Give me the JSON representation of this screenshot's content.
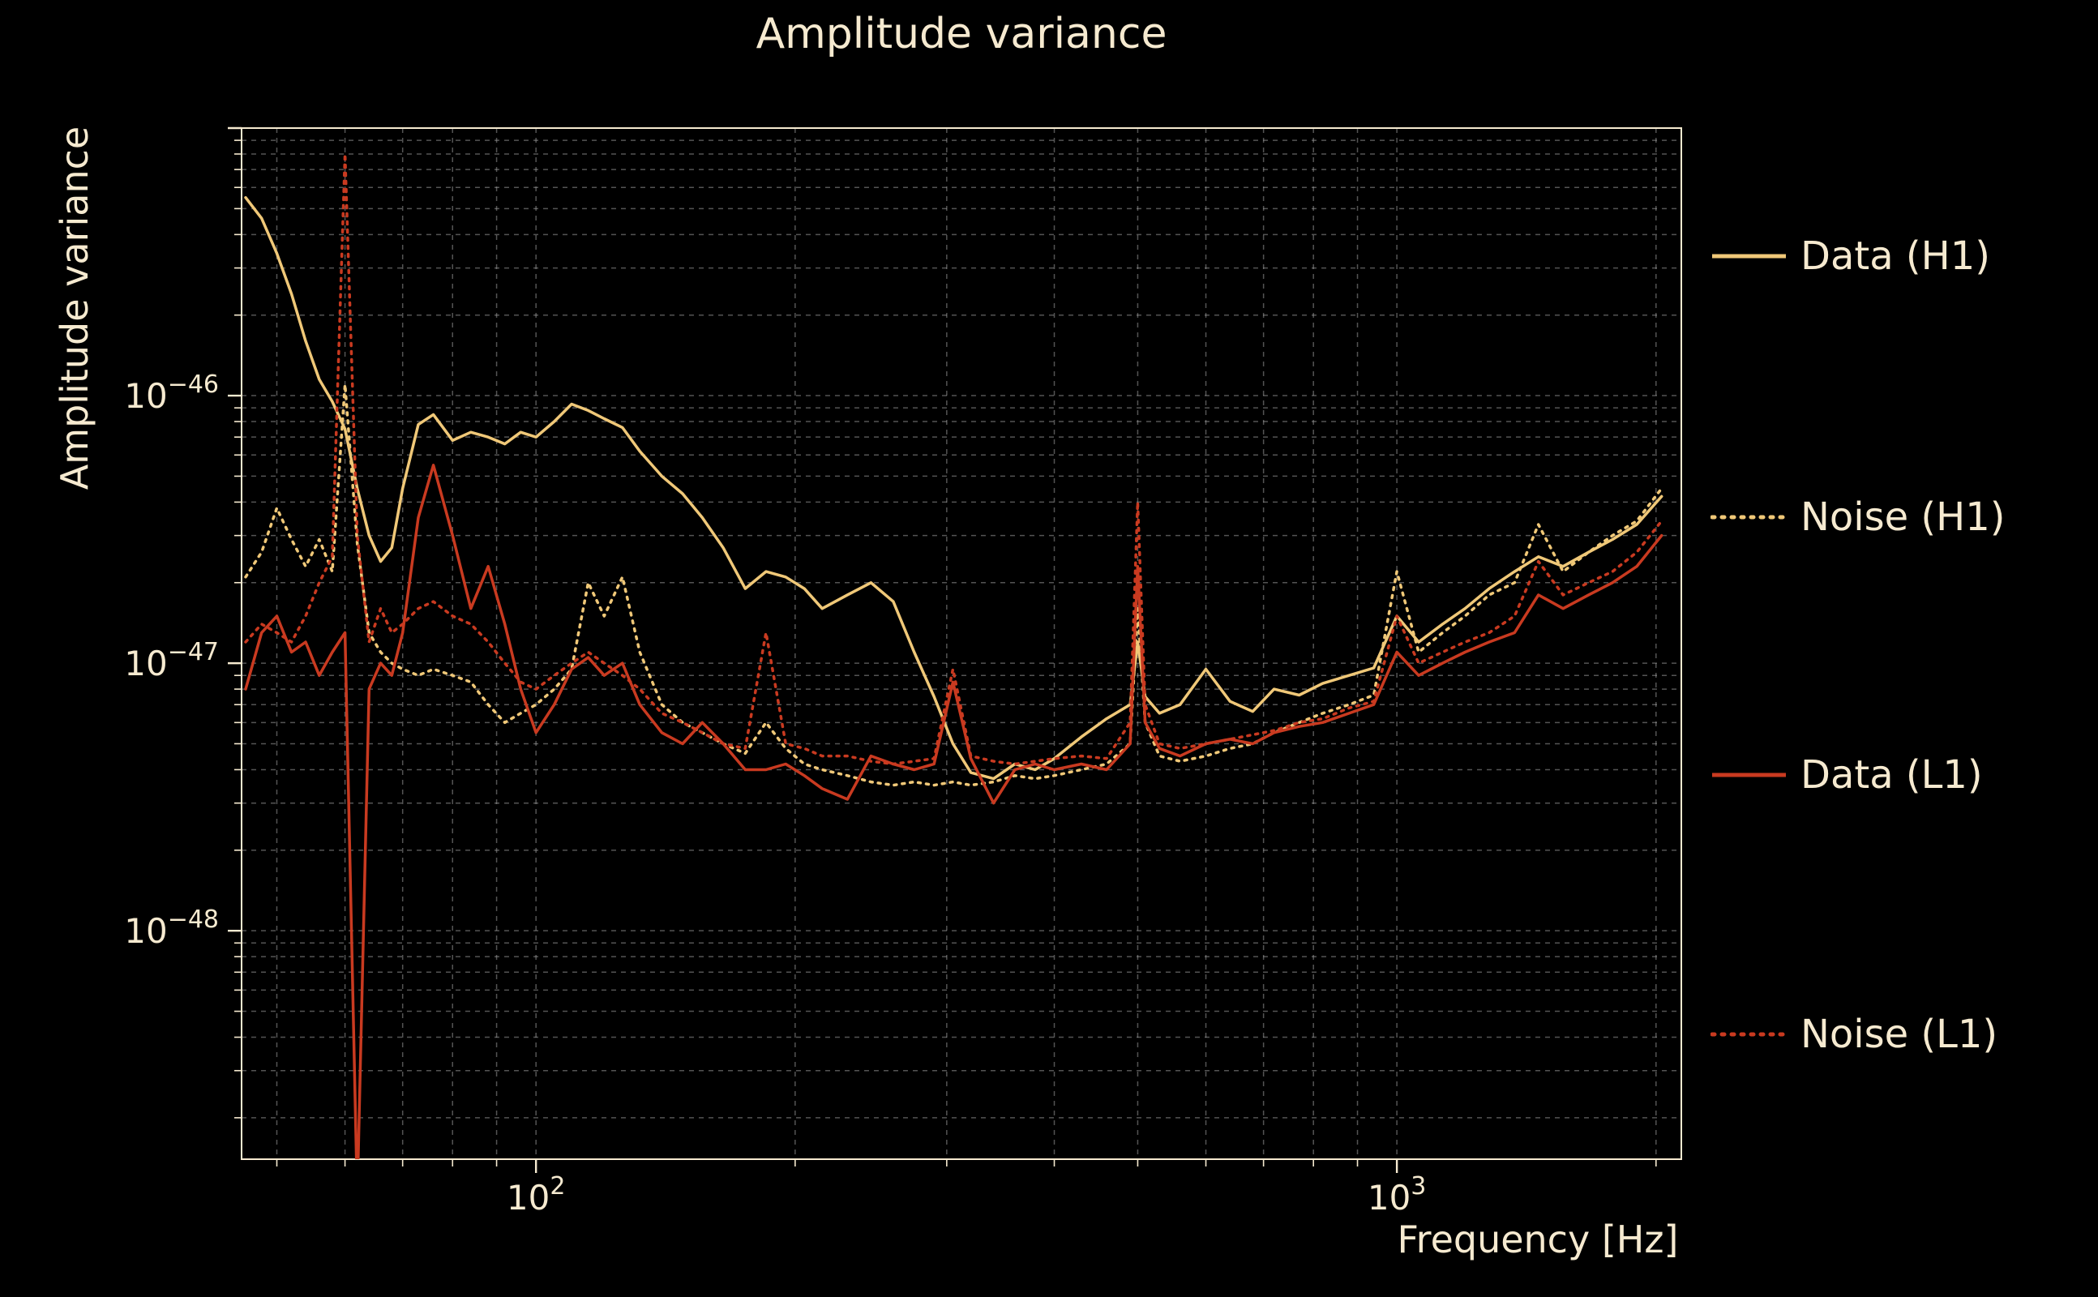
{
  "title": "Amplitude variance",
  "axes": {
    "x_label": "Frequency [Hz]",
    "y_label": "Amplitude variance"
  },
  "colors": {
    "background": "#000000",
    "text": "#f6ead0",
    "grid": "#a8a8a8",
    "h1": "#f0c878",
    "l1": "#c93a20"
  },
  "chart_data": {
    "type": "line",
    "x_scale": "log",
    "y_scale": "log",
    "grid": true,
    "legend_position": "right-outside",
    "xlim": [
      45.5,
      2140
    ],
    "ylim": [
      1.4e-49,
      1e-45
    ],
    "x_ticks": [
      {
        "value": 100,
        "base": "10",
        "exp": "2"
      },
      {
        "value": 1000,
        "base": "10",
        "exp": "3"
      }
    ],
    "y_ticks": [
      {
        "value": 1e-46,
        "base": "10",
        "exp": "−46"
      },
      {
        "value": 1e-47,
        "base": "10",
        "exp": "−47"
      },
      {
        "value": 1e-48,
        "base": "10",
        "exp": "−48"
      }
    ],
    "frequencies_hz": [
      46,
      48,
      50,
      52,
      54,
      56,
      58,
      60,
      62,
      64,
      66,
      68,
      70,
      73,
      76,
      80,
      84,
      88,
      92,
      96,
      100,
      105,
      110,
      115,
      120,
      126,
      132,
      140,
      148,
      156,
      165,
      175,
      185,
      195,
      205,
      215,
      230,
      245,
      260,
      275,
      290,
      305,
      320,
      340,
      360,
      380,
      400,
      430,
      460,
      490,
      500,
      510,
      530,
      560,
      600,
      640,
      680,
      720,
      770,
      820,
      880,
      940,
      1000,
      1060,
      1130,
      1200,
      1280,
      1370,
      1460,
      1560,
      1670,
      1780,
      1900,
      2030
    ],
    "series": [
      {
        "name": "Data (H1)",
        "color_key": "h1",
        "style": "solid",
        "values": [
          5.5e-46,
          4.6e-46,
          3.4e-46,
          2.4e-46,
          1.6e-46,
          1.15e-46,
          9.5e-47,
          7.5e-47,
          4.5e-47,
          3e-47,
          2.4e-47,
          2.7e-47,
          4.5e-47,
          7.8e-47,
          8.5e-47,
          6.8e-47,
          7.3e-47,
          7e-47,
          6.6e-47,
          7.3e-47,
          7e-47,
          8e-47,
          9.3e-47,
          8.8e-47,
          8.2e-47,
          7.6e-47,
          6.2e-47,
          5e-47,
          4.3e-47,
          3.5e-47,
          2.7e-47,
          1.9e-47,
          2.2e-47,
          2.1e-47,
          1.9e-47,
          1.6e-47,
          1.8e-47,
          2e-47,
          1.7e-47,
          1.1e-47,
          7.5e-48,
          5e-48,
          3.9e-48,
          3.7e-48,
          4.2e-48,
          4e-48,
          4.4e-48,
          5.3e-48,
          6.2e-48,
          7e-48,
          1.2e-47,
          7.5e-48,
          6.5e-48,
          7e-48,
          9.5e-48,
          7.2e-48,
          6.6e-48,
          8e-48,
          7.6e-48,
          8.4e-48,
          9e-48,
          9.6e-48,
          1.5e-47,
          1.2e-47,
          1.4e-47,
          1.6e-47,
          1.9e-47,
          2.2e-47,
          2.5e-47,
          2.3e-47,
          2.6e-47,
          2.9e-47,
          3.3e-47,
          4.2e-47
        ]
      },
      {
        "name": "Noise (H1)",
        "color_key": "h1",
        "style": "dotted",
        "values": [
          2.1e-47,
          2.6e-47,
          3.8e-47,
          2.9e-47,
          2.3e-47,
          2.9e-47,
          2.2e-47,
          1.1e-46,
          2.8e-47,
          1.3e-47,
          1.1e-47,
          1e-47,
          9.5e-48,
          9e-48,
          9.5e-48,
          9e-48,
          8.5e-48,
          7e-48,
          6e-48,
          6.5e-48,
          7e-48,
          8e-48,
          9.5e-48,
          2e-47,
          1.5e-47,
          2.1e-47,
          1.1e-47,
          7e-48,
          6e-48,
          5.5e-48,
          5e-48,
          4.6e-48,
          6e-48,
          4.8e-48,
          4.2e-48,
          4e-48,
          3.8e-48,
          3.6e-48,
          3.5e-48,
          3.6e-48,
          3.5e-48,
          3.6e-48,
          3.5e-48,
          3.6e-48,
          3.8e-48,
          3.7e-48,
          3.8e-48,
          4e-48,
          4.2e-48,
          5e-48,
          1.6e-47,
          6e-48,
          4.5e-48,
          4.3e-48,
          4.5e-48,
          4.8e-48,
          5e-48,
          5.5e-48,
          6e-48,
          6.5e-48,
          7e-48,
          7.6e-48,
          2.2e-47,
          1.1e-47,
          1.3e-47,
          1.5e-47,
          1.8e-47,
          2e-47,
          3.3e-47,
          2.2e-47,
          2.6e-47,
          3e-47,
          3.4e-47,
          4.5e-47
        ]
      },
      {
        "name": "Data (L1)",
        "color_key": "l1",
        "style": "solid",
        "values": [
          8e-48,
          1.3e-47,
          1.5e-47,
          1.1e-47,
          1.2e-47,
          9e-48,
          1.1e-47,
          1.3e-47,
          1e-49,
          8e-48,
          1e-47,
          9e-48,
          1.3e-47,
          3.5e-47,
          5.5e-47,
          3e-47,
          1.6e-47,
          2.3e-47,
          1.4e-47,
          8e-48,
          5.5e-48,
          7e-48,
          9.5e-48,
          1.05e-47,
          9e-48,
          1e-47,
          7e-48,
          5.5e-48,
          5e-48,
          6e-48,
          5e-48,
          4e-48,
          4e-48,
          4.2e-48,
          3.8e-48,
          3.4e-48,
          3.1e-48,
          4.5e-48,
          4.2e-48,
          4e-48,
          4.2e-48,
          8.5e-48,
          4.4e-48,
          3e-48,
          4e-48,
          4.2e-48,
          4e-48,
          4.2e-48,
          4e-48,
          5e-48,
          2.3e-47,
          6e-48,
          4.8e-48,
          4.5e-48,
          5e-48,
          5.2e-48,
          5e-48,
          5.5e-48,
          5.8e-48,
          6e-48,
          6.5e-48,
          7e-48,
          1.1e-47,
          9e-48,
          1e-47,
          1.1e-47,
          1.2e-47,
          1.3e-47,
          1.8e-47,
          1.6e-47,
          1.8e-47,
          2e-47,
          2.3e-47,
          3e-47
        ]
      },
      {
        "name": "Noise (L1)",
        "color_key": "l1",
        "style": "dotted",
        "values": [
          1.2e-47,
          1.4e-47,
          1.3e-47,
          1.2e-47,
          1.5e-47,
          2e-47,
          2.5e-47,
          8e-46,
          3e-47,
          1.2e-47,
          1.6e-47,
          1.3e-47,
          1.4e-47,
          1.6e-47,
          1.7e-47,
          1.5e-47,
          1.4e-47,
          1.2e-47,
          1e-47,
          8.5e-48,
          8e-48,
          9e-48,
          1e-47,
          1.1e-47,
          1e-47,
          9e-48,
          8e-48,
          6.5e-48,
          6e-48,
          5.5e-48,
          5e-48,
          4.8e-48,
          1.3e-47,
          5e-48,
          4.8e-48,
          4.5e-48,
          4.5e-48,
          4.3e-48,
          4.2e-48,
          4.3e-48,
          4.4e-48,
          9.5e-48,
          4.5e-48,
          4.3e-48,
          4.2e-48,
          4.3e-48,
          4.4e-48,
          4.5e-48,
          4.4e-48,
          6e-48,
          4e-47,
          7e-48,
          5e-48,
          4.8e-48,
          5e-48,
          5.2e-48,
          5.4e-48,
          5.6e-48,
          6e-48,
          6.2e-48,
          6.8e-48,
          7.2e-48,
          1.5e-47,
          1e-47,
          1.1e-47,
          1.2e-47,
          1.3e-47,
          1.5e-47,
          2.4e-47,
          1.8e-47,
          2e-47,
          2.2e-47,
          2.6e-47,
          3.4e-47
        ]
      }
    ]
  }
}
